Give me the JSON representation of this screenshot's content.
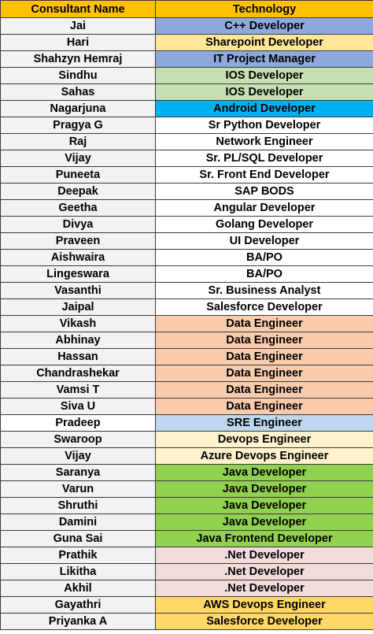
{
  "header": {
    "name_label": "Consultant Name",
    "tech_label": "Technology",
    "bg": "#FFC000"
  },
  "rows": [
    {
      "name": "Jai",
      "tech": "C++ Developer",
      "name_bg": "#F2F2F2",
      "tech_bg": "#8EA9DB"
    },
    {
      "name": "Hari",
      "tech": "Sharepoint Developer",
      "name_bg": "#F2F2F2",
      "tech_bg": "#FFE699"
    },
    {
      "name": "Shahzyn Hemraj",
      "tech": "IT Project Manager",
      "name_bg": "#F2F2F2",
      "tech_bg": "#8EA9DB"
    },
    {
      "name": "Sindhu",
      "tech": "IOS Developer",
      "name_bg": "#F2F2F2",
      "tech_bg": "#C6E0B4"
    },
    {
      "name": "Sahas",
      "tech": "IOS Developer",
      "name_bg": "#F2F2F2",
      "tech_bg": "#C6E0B4"
    },
    {
      "name": "Nagarjuna",
      "tech": "Android Developer",
      "name_bg": "#F2F2F2",
      "tech_bg": "#00B0F0"
    },
    {
      "name": "Pragya G",
      "tech": "Sr Python Developer",
      "name_bg": "#F2F2F2",
      "tech_bg": "#FFFFFF"
    },
    {
      "name": "Raj",
      "tech": "Network Engineer",
      "name_bg": "#F2F2F2",
      "tech_bg": "#FFFFFF"
    },
    {
      "name": "Vijay",
      "tech": "Sr. PL/SQL Developer",
      "name_bg": "#F2F2F2",
      "tech_bg": "#FFFFFF"
    },
    {
      "name": "Puneeta",
      "tech": "Sr. Front End Developer",
      "name_bg": "#F2F2F2",
      "tech_bg": "#FFFFFF"
    },
    {
      "name": "Deepak",
      "tech": "SAP BODS",
      "name_bg": "#F2F2F2",
      "tech_bg": "#FFFFFF"
    },
    {
      "name": "Geetha",
      "tech": "Angular Developer",
      "name_bg": "#F2F2F2",
      "tech_bg": "#FFFFFF"
    },
    {
      "name": "Divya",
      "tech": "Golang Developer",
      "name_bg": "#F2F2F2",
      "tech_bg": "#FFFFFF"
    },
    {
      "name": "Praveen",
      "tech": "UI Developer",
      "name_bg": "#F2F2F2",
      "tech_bg": "#FFFFFF"
    },
    {
      "name": "Aishwaira",
      "tech": "BA/PO",
      "name_bg": "#F2F2F2",
      "tech_bg": "#FFFFFF"
    },
    {
      "name": "Lingeswara",
      "tech": "BA/PO",
      "name_bg": "#F2F2F2",
      "tech_bg": "#FFFFFF"
    },
    {
      "name": "Vasanthi",
      "tech": "Sr. Business Analyst",
      "name_bg": "#F2F2F2",
      "tech_bg": "#FFFFFF"
    },
    {
      "name": "Jaipal",
      "tech": "Salesforce Developer",
      "name_bg": "#F2F2F2",
      "tech_bg": "#FFFFFF"
    },
    {
      "name": "Vikash",
      "tech": "Data Engineer",
      "name_bg": "#F2F2F2",
      "tech_bg": "#F8CBAD"
    },
    {
      "name": "Abhinay",
      "tech": "Data Engineer",
      "name_bg": "#F2F2F2",
      "tech_bg": "#F8CBAD"
    },
    {
      "name": "Hassan",
      "tech": "Data Engineer",
      "name_bg": "#F2F2F2",
      "tech_bg": "#F8CBAD"
    },
    {
      "name": "Chandrashekar",
      "tech": "Data Engineer",
      "name_bg": "#F2F2F2",
      "tech_bg": "#F8CBAD"
    },
    {
      "name": "Vamsi T",
      "tech": "Data Engineer",
      "name_bg": "#F2F2F2",
      "tech_bg": "#F8CBAD"
    },
    {
      "name": "Siva U",
      "tech": "Data Engineer",
      "name_bg": "#F2F2F2",
      "tech_bg": "#F8CBAD"
    },
    {
      "name": "Pradeep",
      "tech": "SRE Engineer",
      "name_bg": "#FFFFFF",
      "tech_bg": "#BDD7EE"
    },
    {
      "name": "Swaroop",
      "tech": "Devops Engineer",
      "name_bg": "#F2F2F2",
      "tech_bg": "#FFF2CC"
    },
    {
      "name": "Vijay",
      "tech": "Azure Devops Engineer",
      "name_bg": "#F2F2F2",
      "tech_bg": "#FFF2CC"
    },
    {
      "name": "Saranya",
      "tech": "Java Developer",
      "name_bg": "#F2F2F2",
      "tech_bg": "#92D050"
    },
    {
      "name": "Varun",
      "tech": "Java Developer",
      "name_bg": "#F2F2F2",
      "tech_bg": "#92D050"
    },
    {
      "name": "Shruthi",
      "tech": "Java Developer",
      "name_bg": "#F2F2F2",
      "tech_bg": "#92D050"
    },
    {
      "name": "Damini",
      "tech": "Java Developer",
      "name_bg": "#F2F2F2",
      "tech_bg": "#92D050"
    },
    {
      "name": "Guna Sai",
      "tech": "Java Frontend Developer",
      "name_bg": "#F2F2F2",
      "tech_bg": "#92D050"
    },
    {
      "name": "Prathik",
      "tech": ".Net Developer",
      "name_bg": "#F2F2F2",
      "tech_bg": "#F2DCDB"
    },
    {
      "name": "Likitha",
      "tech": ".Net Developer",
      "name_bg": "#F2F2F2",
      "tech_bg": "#F2DCDB"
    },
    {
      "name": "Akhil",
      "tech": ".Net Developer",
      "name_bg": "#F2F2F2",
      "tech_bg": "#F2DCDB"
    },
    {
      "name": "Gayathri",
      "tech": "AWS Devops Engineer",
      "name_bg": "#F2F2F2",
      "tech_bg": "#FFD966"
    },
    {
      "name": "Priyanka A",
      "tech": "Salesforce Developer",
      "name_bg": "#F2F2F2",
      "tech_bg": "#FFD966"
    }
  ]
}
